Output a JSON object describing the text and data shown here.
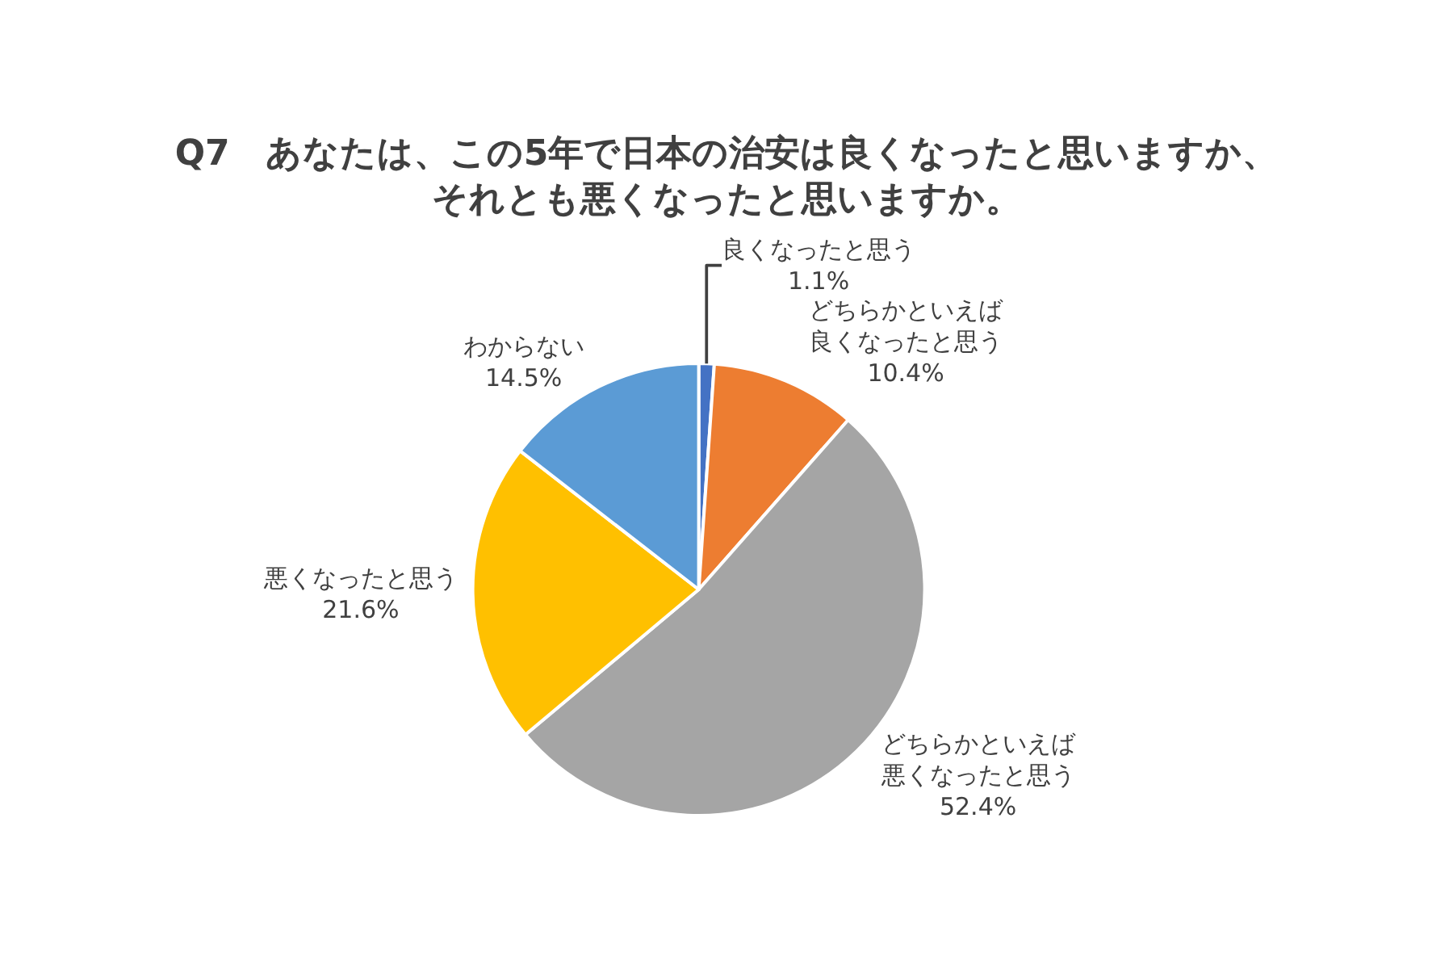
{
  "chart_data": {
    "type": "pie",
    "title": "Q7　あなたは、この5年で日本の治安は良くなったと思いますか、それとも悪くなったと思いますか。",
    "categories": [
      "良くなったと思う",
      "どちらかといえば良くなったと思う",
      "どちらかといえば悪くなったと思う",
      "悪くなったと思う",
      "わからない"
    ],
    "values": [
      1.1,
      10.4,
      52.4,
      21.6,
      14.5
    ],
    "value_labels": [
      "1.1%",
      "10.4%",
      "52.4%",
      "21.6%",
      "14.5%"
    ],
    "colors": [
      "#4472c4",
      "#ed7d31",
      "#a5a5a5",
      "#ffc000",
      "#5b9bd5"
    ],
    "legend": false
  }
}
